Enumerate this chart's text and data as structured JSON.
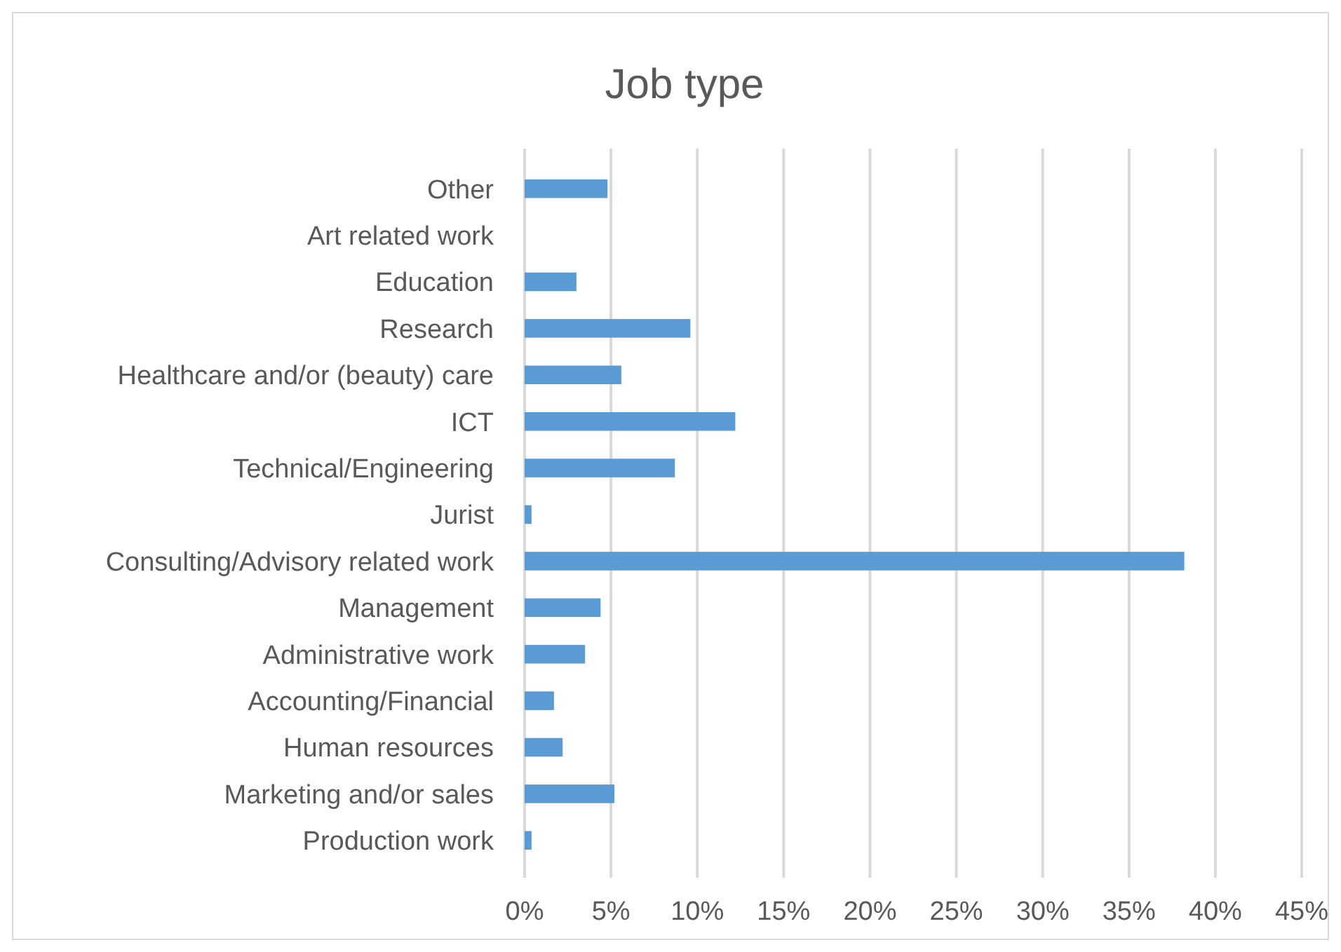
{
  "chart_data": {
    "type": "bar",
    "orientation": "horizontal",
    "title": "Job type",
    "categories": [
      "Other",
      "Art related work",
      "Education",
      "Research",
      "Healthcare and/or (beauty) care",
      "ICT",
      "Technical/Engineering",
      "Jurist",
      "Consulting/Advisory related work",
      "Management",
      "Administrative work",
      "Accounting/Financial",
      "Human resources",
      "Marketing and/or sales",
      "Production work"
    ],
    "values": [
      4.8,
      0,
      3.0,
      9.6,
      5.6,
      12.2,
      8.7,
      0.4,
      38.2,
      4.4,
      3.5,
      1.7,
      2.2,
      5.2,
      0.4
    ],
    "color": "#5b9bd5",
    "xlim": [
      0,
      45
    ],
    "xticks": [
      {
        "value": 0,
        "label": "0%"
      },
      {
        "value": 5,
        "label": "5%"
      },
      {
        "value": 10,
        "label": "10%"
      },
      {
        "value": 15,
        "label": "15%"
      },
      {
        "value": 20,
        "label": "20%"
      },
      {
        "value": 25,
        "label": "25%"
      },
      {
        "value": 30,
        "label": "30%"
      },
      {
        "value": 35,
        "label": "35%"
      },
      {
        "value": 40,
        "label": "40%"
      },
      {
        "value": 45,
        "label": "45%"
      }
    ],
    "grid": "x"
  }
}
